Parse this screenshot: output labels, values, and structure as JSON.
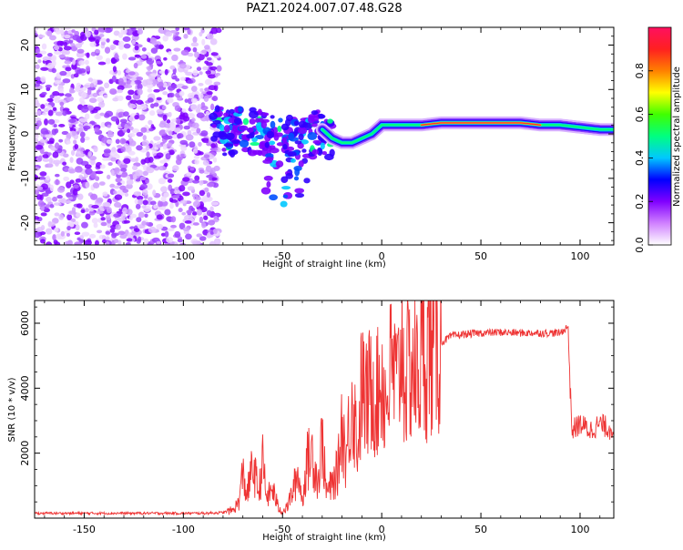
{
  "title": "PAZ1.2024.007.07.48.G28",
  "chart_data": [
    {
      "type": "heatmap",
      "xlabel": "Height of straight line (km)",
      "ylabel": "Frequency (Hz)",
      "xlim": [
        -175,
        117
      ],
      "ylim": [
        -25,
        24
      ],
      "xticks": [
        -150,
        -100,
        -50,
        0,
        50,
        100
      ],
      "yticks": [
        -20,
        -10,
        0,
        10,
        20
      ],
      "colorbar": {
        "label": "Normalized spectral amplitude",
        "range": [
          0.0,
          1.0
        ],
        "ticks": [
          0.0,
          0.2,
          0.4,
          0.6,
          0.8
        ],
        "colors": [
          "#ffffff",
          "#d080ff",
          "#8000ff",
          "#0000ff",
          "#00c8ff",
          "#00ff80",
          "#40ff00",
          "#ffff00",
          "#ff8000",
          "#ff2020",
          "#ff1060"
        ]
      },
      "ridge": {
        "x": [
          -80,
          -70,
          -60,
          -50,
          -40,
          -30,
          -25,
          -20,
          -15,
          -10,
          -5,
          0,
          5,
          10,
          20,
          30,
          40,
          50,
          60,
          70,
          80,
          90,
          100,
          110,
          117
        ],
        "y": [
          0,
          1,
          0,
          -1,
          -2,
          1,
          -1,
          -2,
          -2,
          -1,
          0,
          2,
          2,
          2,
          2,
          2.5,
          2.5,
          2.5,
          2.5,
          2.5,
          2,
          2,
          1.5,
          1,
          1
        ]
      },
      "noise_region_x": [
        -175,
        -82
      ]
    },
    {
      "type": "line",
      "xlabel": "Height of straight line (km)",
      "ylabel": "SNR (10 * v/v)",
      "xlim": [
        -175,
        117
      ],
      "ylim": [
        0,
        6700
      ],
      "xticks": [
        -150,
        -100,
        -50,
        0,
        50,
        100
      ],
      "yticks": [
        2000,
        4000,
        6000
      ],
      "series": [
        {
          "color": "#ee3333",
          "x": [
            -175,
            -150,
            -120,
            -90,
            -80,
            -75,
            -72,
            -70,
            -68,
            -65,
            -62,
            -60,
            -58,
            -55,
            -52,
            -50,
            -48,
            -45,
            -42,
            -40,
            -38,
            -35,
            -32,
            -30,
            -28,
            -25,
            -22,
            -20,
            -18,
            -15,
            -12,
            -10,
            -8,
            -5,
            -2,
            0,
            2,
            5,
            8,
            10,
            12,
            15,
            18,
            20,
            25,
            30,
            35,
            40,
            50,
            60,
            70,
            80,
            90,
            94,
            95,
            96,
            100,
            105,
            110,
            115,
            117
          ],
          "y": [
            150,
            150,
            150,
            150,
            170,
            250,
            500,
            1400,
            700,
            1600,
            800,
            1700,
            600,
            900,
            300,
            200,
            300,
            800,
            1400,
            500,
            1700,
            2000,
            1100,
            2500,
            800,
            1000,
            1500,
            3000,
            1800,
            3800,
            2200,
            4200,
            3500,
            4100,
            3800,
            4500,
            3500,
            4700,
            4000,
            5500,
            4200,
            4800,
            4300,
            5000,
            5200,
            5400,
            5600,
            5650,
            5700,
            5720,
            5700,
            5700,
            5700,
            5900,
            4000,
            2700,
            2900,
            2700,
            2900,
            2750,
            2800
          ]
        }
      ]
    }
  ]
}
